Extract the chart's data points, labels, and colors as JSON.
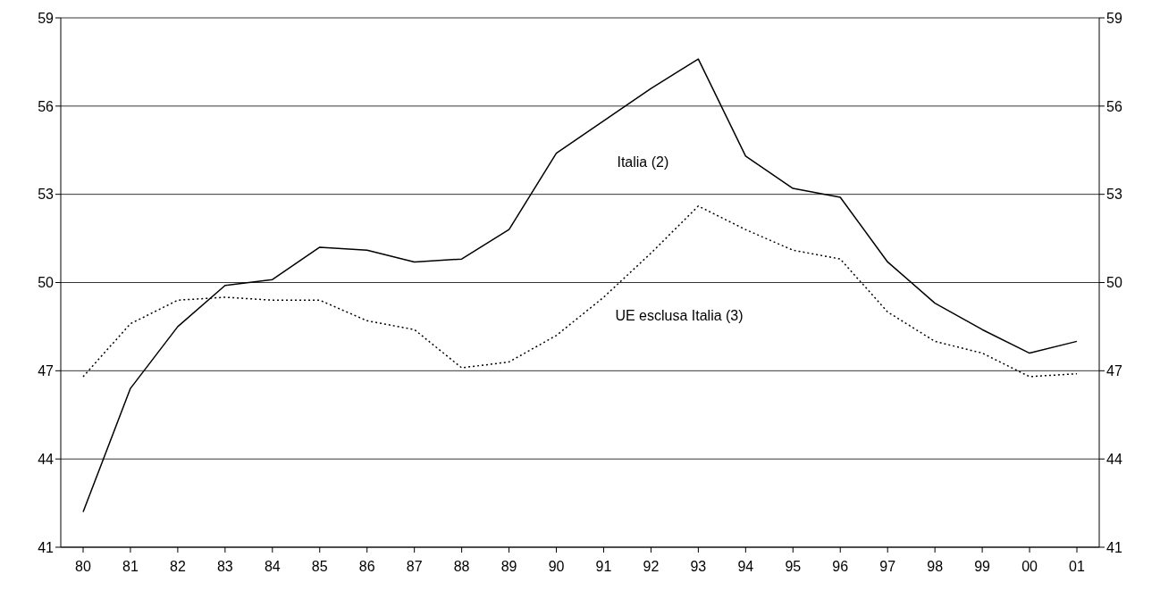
{
  "chart_data": {
    "type": "line",
    "categories": [
      "80",
      "81",
      "82",
      "83",
      "84",
      "85",
      "86",
      "87",
      "88",
      "89",
      "90",
      "91",
      "92",
      "93",
      "94",
      "95",
      "96",
      "97",
      "98",
      "99",
      "00",
      "01"
    ],
    "series": [
      {
        "name": "Italia (2)",
        "color": "#000000",
        "line_style": "solid",
        "values": [
          42.2,
          46.4,
          48.5,
          49.9,
          50.1,
          51.2,
          51.1,
          50.7,
          50.8,
          51.8,
          54.4,
          55.5,
          56.6,
          57.6,
          54.3,
          53.2,
          52.9,
          50.7,
          49.3,
          48.4,
          47.6,
          48.0
        ]
      },
      {
        "name": "UE esclusa Italia (3)",
        "color": "#000000",
        "line_style": "dotted",
        "values": [
          46.8,
          48.6,
          49.4,
          49.5,
          49.4,
          49.4,
          48.7,
          48.4,
          47.1,
          47.3,
          48.2,
          49.5,
          51.0,
          52.6,
          51.8,
          51.1,
          50.8,
          49.0,
          48.0,
          47.6,
          46.8,
          46.9
        ]
      }
    ],
    "ylim": [
      41,
      59
    ],
    "yticks": [
      41,
      44,
      47,
      50,
      53,
      56,
      59
    ],
    "y2lim": [
      41,
      59
    ],
    "y2ticks": [
      41,
      44,
      47,
      50,
      53,
      56,
      59
    ],
    "grid": "y",
    "legend": false,
    "marker": "none"
  }
}
